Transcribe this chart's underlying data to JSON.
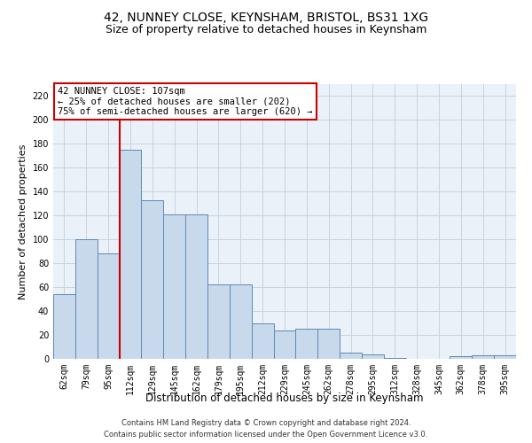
{
  "title1": "42, NUNNEY CLOSE, KEYNSHAM, BRISTOL, BS31 1XG",
  "title2": "Size of property relative to detached houses in Keynsham",
  "xlabel": "Distribution of detached houses by size in Keynsham",
  "ylabel": "Number of detached properties",
  "categories": [
    "62sqm",
    "79sqm",
    "95sqm",
    "112sqm",
    "129sqm",
    "145sqm",
    "162sqm",
    "179sqm",
    "195sqm",
    "212sqm",
    "229sqm",
    "245sqm",
    "262sqm",
    "278sqm",
    "295sqm",
    "312sqm",
    "328sqm",
    "345sqm",
    "362sqm",
    "378sqm",
    "395sqm"
  ],
  "values": [
    54,
    100,
    88,
    175,
    133,
    121,
    121,
    62,
    62,
    30,
    24,
    25,
    25,
    5,
    4,
    1,
    0,
    0,
    2,
    3,
    3
  ],
  "bar_color": "#c9d9ec",
  "bar_edge_color": "#5b8ab5",
  "ylim": [
    0,
    230
  ],
  "yticks": [
    0,
    20,
    40,
    60,
    80,
    100,
    120,
    140,
    160,
    180,
    200,
    220
  ],
  "vline_x": 2.5,
  "vline_color": "#cc0000",
  "annotation_text": "42 NUNNEY CLOSE: 107sqm\n← 25% of detached houses are smaller (202)\n75% of semi-detached houses are larger (620) →",
  "annotation_box_color": "#ffffff",
  "annotation_box_edge": "#cc0000",
  "footer1": "Contains HM Land Registry data © Crown copyright and database right 2024.",
  "footer2": "Contains public sector information licensed under the Open Government Licence v3.0.",
  "bg_color": "#ffffff",
  "plot_bg_color": "#eaf1f8",
  "grid_color": "#c8d4df",
  "title1_fontsize": 10,
  "title2_fontsize": 9,
  "xlabel_fontsize": 8.5,
  "ylabel_fontsize": 8,
  "tick_fontsize": 7,
  "ann_fontsize": 7.5,
  "footer_fontsize": 6
}
